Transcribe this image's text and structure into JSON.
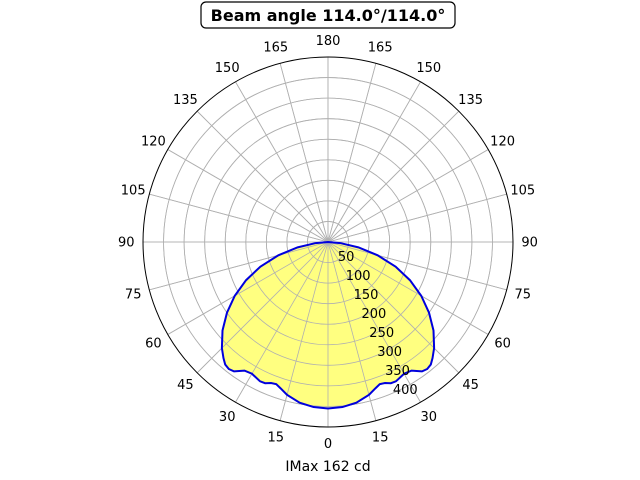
{
  "chart_data": {
    "type": "polar",
    "title": "Beam angle 114.0°/114.0°",
    "xlabel": "IMax 162 cd",
    "angle_tick_labels": [
      "0",
      "15",
      "30",
      "45",
      "60",
      "75",
      "90",
      "105",
      "120",
      "135",
      "150",
      "165",
      "180",
      "165",
      "150",
      "135",
      "120",
      "105",
      "90",
      "75",
      "60",
      "45",
      "30",
      "15"
    ],
    "radial_ticks": [
      50,
      100,
      150,
      200,
      250,
      300,
      350,
      400
    ],
    "rlim": [
      0,
      450
    ],
    "grid": true,
    "fill_color": "#ffff80",
    "line_color": "#0000dd",
    "series": [
      {
        "angles_deg": [
          0,
          5,
          10,
          15,
          18,
          20,
          22,
          24,
          26,
          30,
          33,
          36,
          38,
          40,
          42,
          45,
          50,
          55,
          60,
          65,
          70,
          75,
          80,
          85,
          90
        ],
        "values": [
          405,
          403,
          397,
          385,
          374,
          368,
          370,
          376,
          377,
          370,
          373,
          389,
          392,
          389,
          380,
          365,
          335,
          300,
          262,
          220,
          175,
          125,
          75,
          30,
          0
        ]
      }
    ]
  }
}
